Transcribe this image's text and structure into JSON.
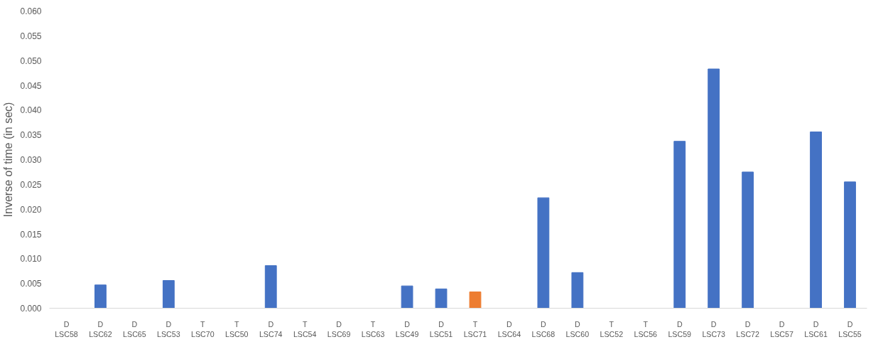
{
  "chart_data": {
    "type": "bar",
    "ylabel": "Inverse of time (in sec)",
    "categories": [
      "D\nLSC58",
      "D\nLSC62",
      "D\nLSC65",
      "D\nLSC53",
      "T\nLSC70",
      "T\nLSC50",
      "D\nLSC74",
      "T\nLSC54",
      "D\nLSC69",
      "T\nLSC63",
      "D\nLSC49",
      "D\nLSC51",
      "T\nLSC71",
      "D\nLSC64",
      "D\nLSC68",
      "D\nLSC60",
      "T\nLSC52",
      "T\nLSC56",
      "D\nLSC59",
      "D\nLSC73",
      "D\nLSC72",
      "D\nLSC57",
      "D\nLSC61",
      "D\nLSC55"
    ],
    "values": [
      0,
      0.0047,
      0,
      0.0056,
      0,
      0,
      0.0086,
      0,
      0,
      0,
      0.0045,
      0.0039,
      0.0033,
      0,
      0.0223,
      0.0072,
      0,
      0,
      0.0337,
      0.0483,
      0.0275,
      0,
      0.0356,
      0.0255
    ],
    "colors": [
      "#4472c4",
      "#4472c4",
      "#4472c4",
      "#4472c4",
      "#4472c4",
      "#4472c4",
      "#4472c4",
      "#4472c4",
      "#4472c4",
      "#4472c4",
      "#4472c4",
      "#4472c4",
      "#ed7d31",
      "#4472c4",
      "#4472c4",
      "#4472c4",
      "#4472c4",
      "#4472c4",
      "#4472c4",
      "#4472c4",
      "#4472c4",
      "#4472c4",
      "#4472c4",
      "#4472c4"
    ],
    "ylim": [
      0,
      0.06
    ],
    "yticks": [
      {
        "value": 0,
        "label": "0.000"
      },
      {
        "value": 0.005,
        "label": "0.005"
      },
      {
        "value": 0.01,
        "label": "0.010"
      },
      {
        "value": 0.015,
        "label": "0.015"
      },
      {
        "value": 0.02,
        "label": "0.020"
      },
      {
        "value": 0.025,
        "label": "0.025"
      },
      {
        "value": 0.03,
        "label": "0.030"
      },
      {
        "value": 0.035,
        "label": "0.035"
      },
      {
        "value": 0.04,
        "label": "0.040"
      },
      {
        "value": 0.045,
        "label": "0.045"
      },
      {
        "value": 0.05,
        "label": "0.050"
      },
      {
        "value": 0.055,
        "label": "0.055"
      },
      {
        "value": 0.06,
        "label": "0.060"
      }
    ],
    "grid": false
  }
}
